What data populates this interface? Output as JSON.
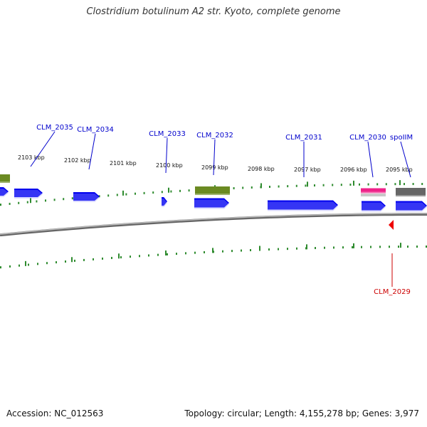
{
  "title": "Clostridium botulinum A2 str. Kyoto, complete genome",
  "footer": {
    "accession": "Accession: NC_012563",
    "stats": "Topology: circular; Length: 4,155,278 bp; Genes: 3,977"
  },
  "colors": {
    "cds": "#0000ee",
    "gene_label": "#0000cc",
    "rna": "#ee2288",
    "olive": "#6b8a22",
    "gray_feature": "#666666",
    "ticks": "#2e8b2e",
    "backbone": "#888888",
    "reverse_highlight": "#ee0000"
  },
  "kbp_ticks": [
    "2103 kbp",
    "2102 kbp",
    "2101 kbp",
    "2100 kbp",
    "2099 kbp",
    "2098 kbp",
    "2097 kbp",
    "2096 kbp",
    "2095 kbp"
  ],
  "gene_labels": [
    {
      "name": "CLM_2035",
      "color": "#0000cc"
    },
    {
      "name": "CLM_2034",
      "color": "#0000cc"
    },
    {
      "name": "CLM_2033",
      "color": "#0000cc"
    },
    {
      "name": "CLM_2032",
      "color": "#0000cc"
    },
    {
      "name": "CLM_2031",
      "color": "#0000cc"
    },
    {
      "name": "CLM_2030",
      "color": "#0000cc"
    },
    {
      "name": "spoIIM",
      "color": "#0000cc"
    },
    {
      "name": "CLM_2029",
      "color": "#cc0000"
    }
  ]
}
